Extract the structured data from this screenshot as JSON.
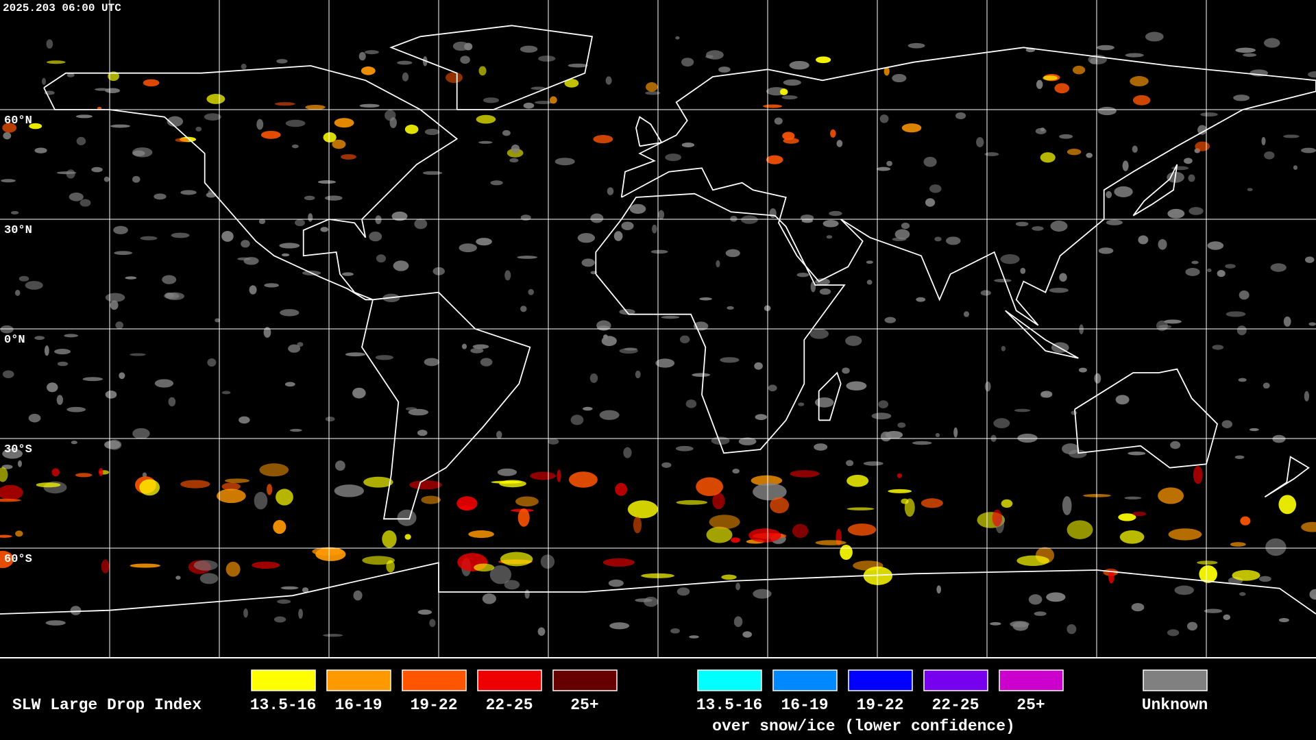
{
  "header": {
    "timestamp": "2025.203 06:00 UTC"
  },
  "latitude_labels": [
    "60°N",
    "30°N",
    "0°N",
    "30°S",
    "60°S"
  ],
  "legend": {
    "title": "SLW Large Drop Index",
    "liquid": [
      {
        "label": "13.5-16",
        "color": "#ffff00"
      },
      {
        "label": "16-19",
        "color": "#ff9900"
      },
      {
        "label": "19-22",
        "color": "#ff5500"
      },
      {
        "label": "22-25",
        "color": "#ee0000"
      },
      {
        "label": "25+",
        "color": "#660000"
      }
    ],
    "snow_ice": [
      {
        "label": "13.5-16",
        "color": "#00ffff"
      },
      {
        "label": "16-19",
        "color": "#0088ff"
      },
      {
        "label": "19-22",
        "color": "#0000ff"
      },
      {
        "label": "22-25",
        "color": "#7700ee"
      },
      {
        "label": "25+",
        "color": "#cc00cc"
      }
    ],
    "snow_ice_caption": "over snow/ice (lower confidence)",
    "unknown": {
      "label": "Unknown",
      "color": "#808080"
    }
  }
}
